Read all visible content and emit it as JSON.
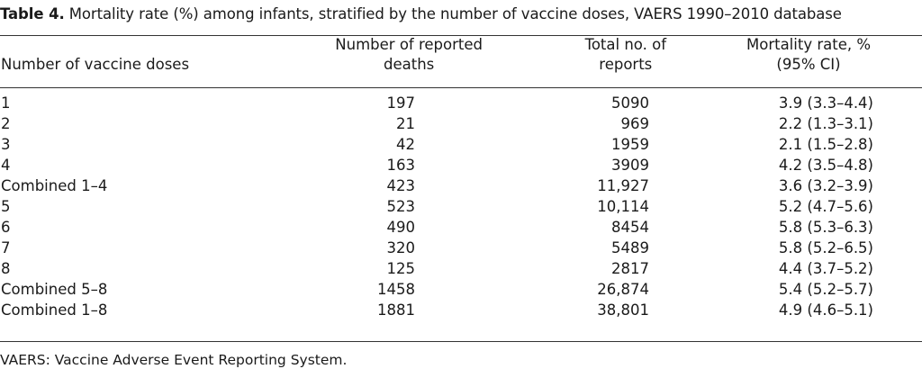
{
  "caption": {
    "label": "Table 4.",
    "text": " Mortality rate (%) among infants, stratified by the number of vaccine doses, VAERS 1990–2010 database"
  },
  "headers": {
    "doses": "Number of vaccine doses",
    "deaths_line1": "Number of reported",
    "deaths_line2": "deaths",
    "reports_line1": "Total no. of",
    "reports_line2": "reports",
    "rate_line1": "Mortality rate, %",
    "rate_line2": "(95% CI)"
  },
  "rows": [
    {
      "doses": "1",
      "deaths": "197",
      "reports": "5090",
      "rate": "3.9 (3.3–4.4)"
    },
    {
      "doses": "2",
      "deaths": "21",
      "reports": "969",
      "rate": "2.2 (1.3–3.1)"
    },
    {
      "doses": "3",
      "deaths": "42",
      "reports": "1959",
      "rate": "2.1 (1.5–2.8)"
    },
    {
      "doses": "4",
      "deaths": "163",
      "reports": "3909",
      "rate": "4.2 (3.5–4.8)"
    },
    {
      "doses": "Combined 1–4",
      "deaths": "423",
      "reports": "11,927",
      "rate": "3.6 (3.2–3.9)"
    },
    {
      "doses": "5",
      "deaths": "523",
      "reports": "10,114",
      "rate": "5.2 (4.7–5.6)"
    },
    {
      "doses": "6",
      "deaths": "490",
      "reports": "8454",
      "rate": "5.8 (5.3–6.3)"
    },
    {
      "doses": "7",
      "deaths": "320",
      "reports": "5489",
      "rate": "5.8 (5.2–6.5)"
    },
    {
      "doses": "8",
      "deaths": "125",
      "reports": "2817",
      "rate": "4.4 (3.7–5.2)"
    },
    {
      "doses": "Combined 5–8",
      "deaths": "1458",
      "reports": "26,874",
      "rate": "5.4 (5.2–5.7)"
    },
    {
      "doses": "Combined 1–8",
      "deaths": "1881",
      "reports": "38,801",
      "rate": "4.9 (4.6–5.1)"
    }
  ],
  "footnote": "VAERS: Vaccine Adverse Event Reporting System."
}
